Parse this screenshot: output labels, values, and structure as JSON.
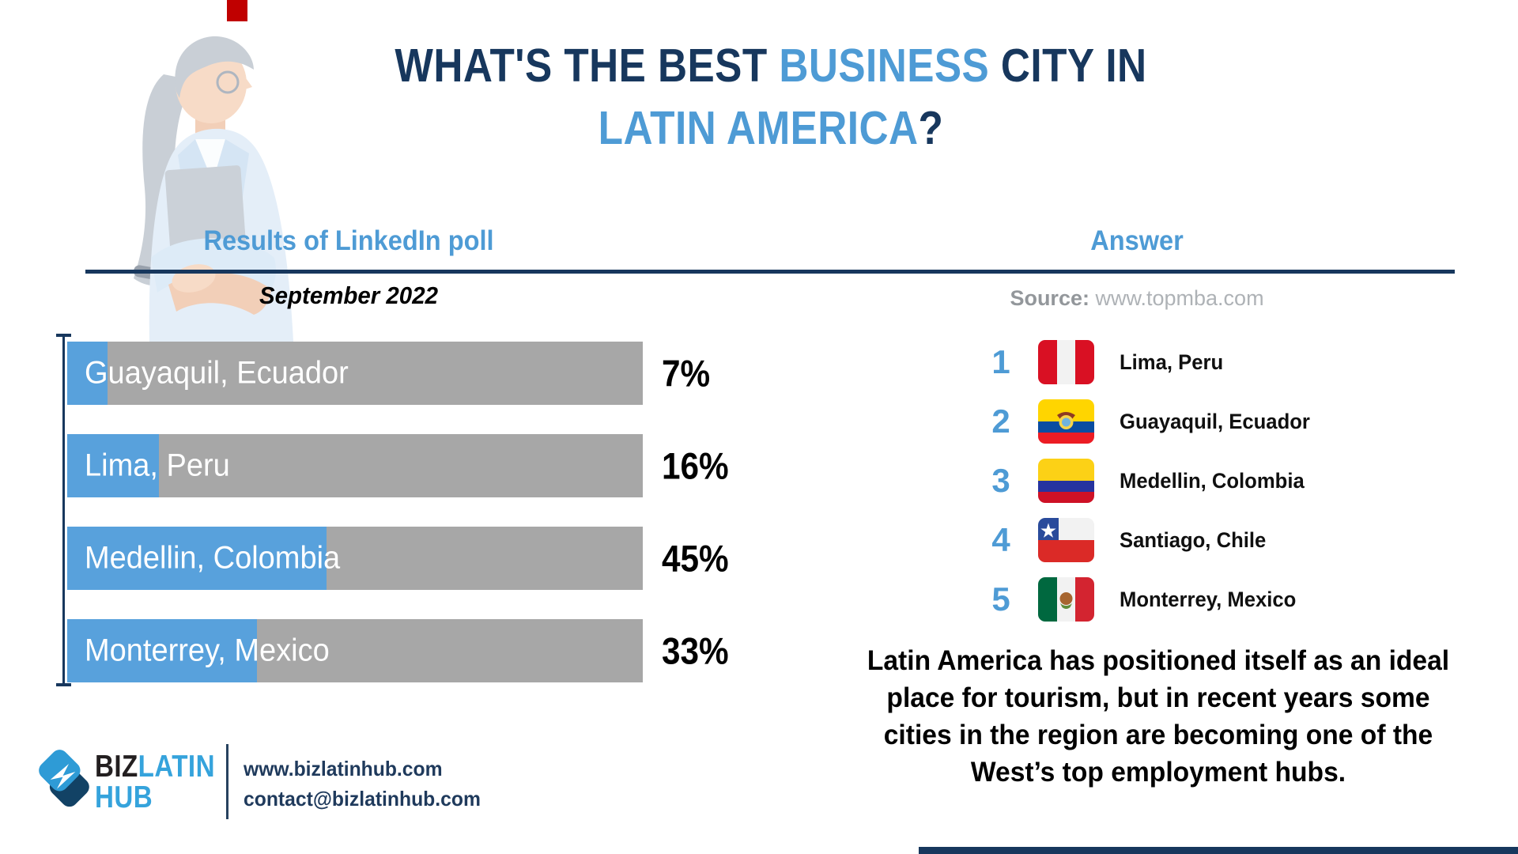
{
  "colors": {
    "navy": "#17375D",
    "accent_blue": "#4E9BD5",
    "bar_blue": "#58A1DC",
    "bar_gray": "#A7A7A7",
    "red_accent": "#C00000",
    "logo_blue": "#35A3DC",
    "logo_dark": "#231F20"
  },
  "title": {
    "line1_pre": "WHAT'S THE BEST ",
    "line1_highlight": "BUSINESS",
    "line1_post": " CITY IN",
    "line2_highlight": "LATIN AMERICA",
    "line2_mark": "?"
  },
  "left_panel": {
    "heading": "Results of LinkedIn poll",
    "subtitle": "September 2022"
  },
  "right_panel": {
    "heading": "Answer",
    "source_label": "Source:",
    "source_value": "www.topmba.com",
    "ranking": [
      {
        "rank": "1",
        "flag": "peru",
        "city": "Lima, Peru"
      },
      {
        "rank": "2",
        "flag": "ecuador",
        "city": "Guayaquil, Ecuador"
      },
      {
        "rank": "3",
        "flag": "colombia",
        "city": "Medellin, Colombia"
      },
      {
        "rank": "4",
        "flag": "chile",
        "city": "Santiago, Chile"
      },
      {
        "rank": "5",
        "flag": "mexico",
        "city": "Monterrey, Mexico"
      }
    ],
    "note": "Latin America has positioned itself as an ideal place for tourism, but in recent years some cities in the region are becoming one of the West’s top employment hubs."
  },
  "chart_data": {
    "type": "bar",
    "orientation": "horizontal",
    "title": "Results of LinkedIn poll",
    "subtitle": "September 2022",
    "categories": [
      "Guayaquil, Ecuador",
      "Lima, Peru",
      "Medellin, Colombia",
      "Monterrey, Mexico"
    ],
    "values": [
      7,
      16,
      45,
      33
    ],
    "value_labels": [
      "7%",
      "16%",
      "45%",
      "33%"
    ],
    "unit": "%",
    "xlim": [
      0,
      100
    ],
    "grid": false,
    "legend": false,
    "fill_color": "#58A1DC",
    "track_color": "#A7A7A7"
  },
  "footer": {
    "logo_part1": "BIZ",
    "logo_part2": "LATIN",
    "logo_part3": "HUB",
    "website": "www.bizlatinhub.com",
    "email": "contact@bizlatinhub.com"
  }
}
